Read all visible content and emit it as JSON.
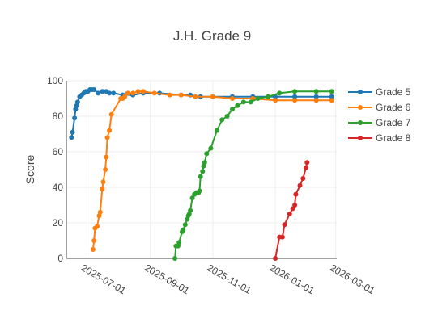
{
  "chart_data": {
    "type": "line",
    "title": "J.H. Grade 9",
    "xlabel": "",
    "ylabel": "Score",
    "xlim": [
      "2025-06-11",
      "2026-03-02"
    ],
    "ylim": [
      0,
      100
    ],
    "y_ticks": [
      0,
      20,
      40,
      60,
      80,
      100
    ],
    "x_ticks": [
      "2025-07-01",
      "2025-09-01",
      "2025-11-01",
      "2026-01-01",
      "2026-03-01"
    ],
    "grid": true,
    "legend_position": "right",
    "series": [
      {
        "name": "Grade 5",
        "color": "#1f77b4",
        "x": [
          "2025-06-16",
          "2025-06-17",
          "2025-06-19",
          "2025-06-20",
          "2025-06-21",
          "2025-06-22",
          "2025-06-24",
          "2025-06-26",
          "2025-06-28",
          "2025-06-30",
          "2025-07-02",
          "2025-07-04",
          "2025-07-06",
          "2025-07-08",
          "2025-07-12",
          "2025-07-16",
          "2025-07-20",
          "2025-07-23",
          "2025-07-27",
          "2025-08-05",
          "2025-08-15",
          "2025-08-25",
          "2025-09-10",
          "2025-10-01",
          "2025-10-10",
          "2025-10-20",
          "2025-11-01",
          "2025-11-20",
          "2025-12-10",
          "2026-01-01",
          "2026-01-20",
          "2026-02-10",
          "2026-02-25"
        ],
        "y": [
          68,
          71,
          79,
          84,
          86,
          88,
          91,
          92,
          93,
          94,
          94,
          95,
          95,
          95,
          93,
          94,
          94,
          93,
          93,
          92,
          92,
          93,
          93,
          92,
          92,
          91,
          91,
          91,
          91,
          91,
          91,
          91,
          91
        ]
      },
      {
        "name": "Grade 6",
        "color": "#ff7f0e",
        "x": [
          "2025-07-07",
          "2025-07-08",
          "2025-07-09",
          "2025-07-11",
          "2025-07-13",
          "2025-07-14",
          "2025-07-16",
          "2025-07-17",
          "2025-07-19",
          "2025-07-20",
          "2025-07-21",
          "2025-07-23",
          "2025-07-25",
          "2025-08-03",
          "2025-08-05",
          "2025-08-07",
          "2025-08-10",
          "2025-08-15",
          "2025-08-20",
          "2025-08-25",
          "2025-09-05",
          "2025-09-20",
          "2025-10-01",
          "2025-10-15",
          "2025-11-01",
          "2025-11-20",
          "2025-12-10",
          "2026-01-01",
          "2026-01-20",
          "2026-02-10",
          "2026-02-25"
        ],
        "y": [
          5,
          10,
          17,
          18,
          24,
          26,
          39,
          43,
          50,
          57,
          68,
          72,
          81,
          90,
          90,
          91,
          93,
          93,
          94,
          94,
          93,
          92,
          92,
          91,
          91,
          90,
          90,
          89,
          89,
          89,
          89
        ]
      },
      {
        "name": "Grade 7",
        "color": "#2ca02c",
        "x": [
          "2025-09-25",
          "2025-09-26",
          "2025-09-28",
          "2025-09-29",
          "2025-10-02",
          "2025-10-03",
          "2025-10-05",
          "2025-10-07",
          "2025-10-08",
          "2025-10-09",
          "2025-10-10",
          "2025-10-12",
          "2025-10-14",
          "2025-10-16",
          "2025-10-18",
          "2025-10-19",
          "2025-10-20",
          "2025-10-22",
          "2025-10-23",
          "2025-10-24",
          "2025-10-26",
          "2025-10-30",
          "2025-11-05",
          "2025-11-10",
          "2025-11-15",
          "2025-11-20",
          "2025-11-25",
          "2025-12-01",
          "2025-12-08",
          "2025-12-15",
          "2025-12-25",
          "2026-01-05",
          "2026-01-20",
          "2026-02-10",
          "2026-02-25"
        ],
        "y": [
          0,
          7,
          7,
          9,
          15,
          16,
          19,
          22,
          24,
          25,
          27,
          34,
          36,
          37,
          37,
          38,
          46,
          49,
          52,
          54,
          59,
          62,
          72,
          78,
          80,
          84,
          86,
          88,
          88,
          90,
          91,
          93,
          94,
          94,
          94
        ]
      },
      {
        "name": "Grade 8",
        "color": "#d62728",
        "x": [
          "2026-01-01",
          "2026-01-05",
          "2026-01-08",
          "2026-01-10",
          "2026-01-15",
          "2026-01-18",
          "2026-01-20",
          "2026-01-21",
          "2026-01-25",
          "2026-01-28",
          "2026-01-31",
          "2026-02-01"
        ],
        "y": [
          0,
          12,
          12,
          19,
          25,
          28,
          30,
          36,
          41,
          45,
          51,
          54
        ]
      }
    ]
  }
}
